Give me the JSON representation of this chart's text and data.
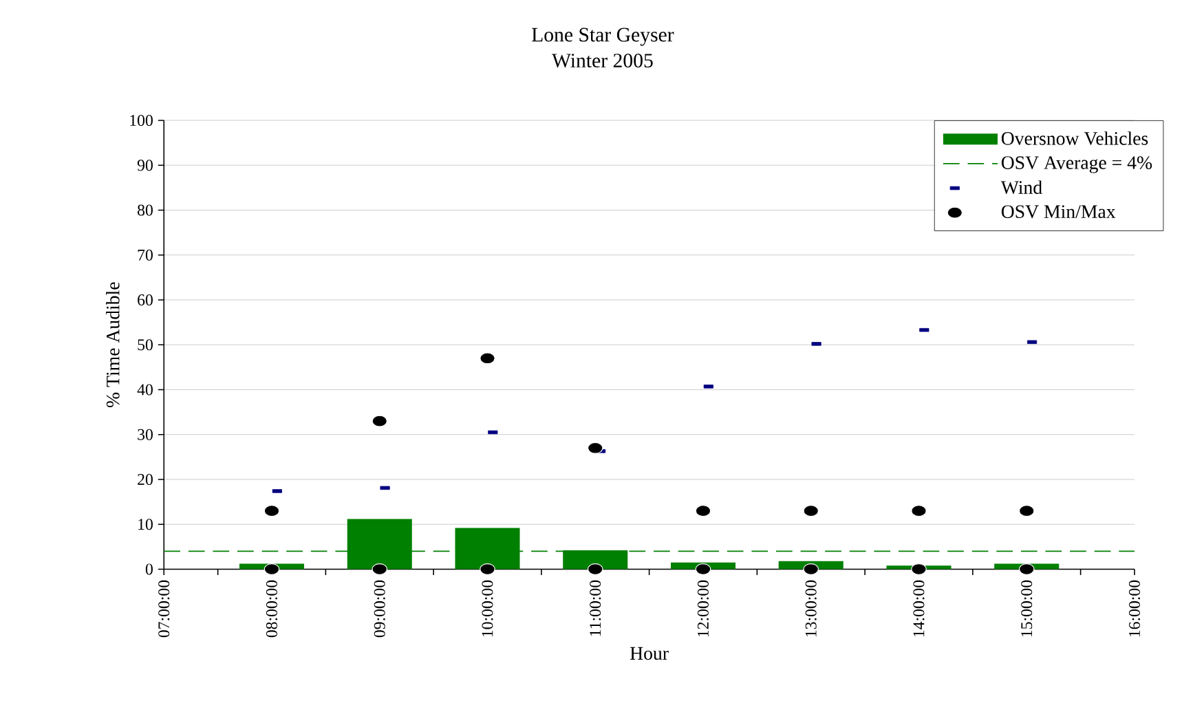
{
  "chart_data": {
    "type": "bar",
    "title": "Lone Star Geyser",
    "subtitle": "Winter 2005",
    "xlabel": "Hour",
    "ylabel": "% Time Audible",
    "xlim": [
      7,
      16
    ],
    "ylim": [
      0,
      100
    ],
    "xticks": [
      {
        "value": 7,
        "label": "07:00:00"
      },
      {
        "value": 7.5,
        "label": null
      },
      {
        "value": 8,
        "label": "08:00:00"
      },
      {
        "value": 8.5,
        "label": null
      },
      {
        "value": 9,
        "label": "09:00:00"
      },
      {
        "value": 9.5,
        "label": null
      },
      {
        "value": 10,
        "label": "10:00:00"
      },
      {
        "value": 10.5,
        "label": null
      },
      {
        "value": 11,
        "label": "11:00:00"
      },
      {
        "value": 11.5,
        "label": null
      },
      {
        "value": 12,
        "label": "12:00:00"
      },
      {
        "value": 12.5,
        "label": null
      },
      {
        "value": 13,
        "label": "13:00:00"
      },
      {
        "value": 13.5,
        "label": null
      },
      {
        "value": 14,
        "label": "14:00:00"
      },
      {
        "value": 14.5,
        "label": null
      },
      {
        "value": 15,
        "label": "15:00:00"
      },
      {
        "value": 15.5,
        "label": null
      },
      {
        "value": 16,
        "label": "16:00:00"
      }
    ],
    "yticks": [
      0,
      10,
      20,
      30,
      40,
      50,
      60,
      70,
      80,
      90,
      100
    ],
    "grid": "y",
    "legend": "top right",
    "series": [
      {
        "name": "Oversnow Vehicles",
        "color": "#008000",
        "x": [
          8,
          9,
          10,
          11,
          12,
          13,
          14,
          15
        ],
        "values": [
          1.2,
          11.2,
          9.2,
          4.2,
          1.5,
          1.8,
          0.8,
          1.2
        ]
      },
      {
        "name": "Wind",
        "type": "scatter",
        "marker": "square",
        "color": "#000080",
        "x": [
          8.05,
          9.05,
          10.05,
          11.05,
          12.05,
          13.05,
          14.05,
          15.05
        ],
        "values": [
          17.4,
          18.1,
          30.5,
          26.3,
          40.7,
          50.2,
          53.3,
          50.6
        ]
      },
      {
        "name": "OSV Min/Max",
        "type": "scatter",
        "marker": "circle",
        "color": "#000000",
        "x": [
          8,
          8,
          9,
          9,
          10,
          10,
          11,
          11,
          12,
          12,
          13,
          13,
          14,
          14,
          15,
          15
        ],
        "values": [
          0,
          13,
          0,
          33,
          0,
          47,
          0,
          27,
          0,
          13,
          0,
          13,
          0,
          13,
          0,
          13
        ]
      }
    ],
    "ref_lines": [
      {
        "axis": "y",
        "value": 4,
        "label": "OSV Average = 4%",
        "color": "#008000",
        "line_style": "dashed"
      }
    ]
  }
}
